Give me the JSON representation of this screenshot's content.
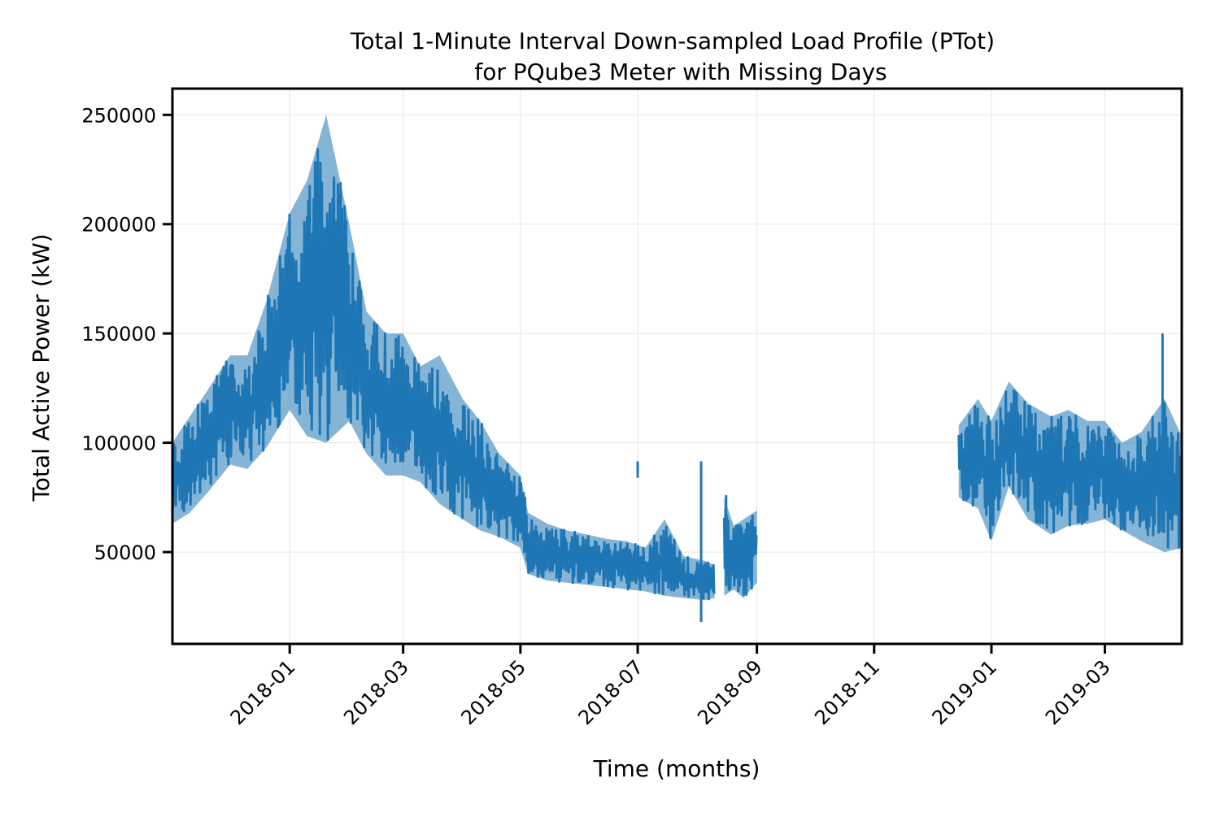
{
  "chart_data": {
    "type": "line",
    "title": [
      "Total 1-Minute Interval Down-sampled Load Profile (PTot)",
      "for PQube3 Meter with Missing Days"
    ],
    "xlabel": "Time (months)",
    "ylabel": "Total Active Power (kW)",
    "xlim": [
      "2017-11-01",
      "2019-04-10"
    ],
    "ylim": [
      8000,
      262000
    ],
    "x_ticks": [
      "2018-01",
      "2018-03",
      "2018-05",
      "2018-07",
      "2018-09",
      "2018-11",
      "2019-01",
      "2019-03"
    ],
    "y_ticks": [
      50000,
      100000,
      150000,
      200000,
      250000
    ],
    "grid": true,
    "legend": "none",
    "color": "#1f77b4",
    "series": [
      {
        "segment": 1,
        "x": [
          "2017-11-01",
          "2017-11-10",
          "2017-11-20",
          "2017-12-01",
          "2017-12-10",
          "2017-12-20",
          "2018-01-01",
          "2018-01-10",
          "2018-01-20",
          "2018-02-01",
          "2018-02-10",
          "2018-02-20",
          "2018-03-01",
          "2018-03-10",
          "2018-03-20",
          "2018-04-01",
          "2018-04-10",
          "2018-04-20",
          "2018-05-01",
          "2018-05-05",
          "2018-05-15",
          "2018-05-25",
          "2018-06-05",
          "2018-06-15",
          "2018-06-25",
          "2018-07-05",
          "2018-07-15",
          "2018-07-25",
          "2018-08-05",
          "2018-08-10"
        ],
        "low": [
          63000,
          68000,
          78000,
          90000,
          88000,
          98000,
          115000,
          103000,
          100000,
          110000,
          95000,
          85000,
          85000,
          82000,
          72000,
          65000,
          60000,
          57000,
          52000,
          40000,
          37000,
          36000,
          35000,
          34000,
          33000,
          32000,
          30000,
          29000,
          28000,
          29000
        ],
        "high": [
          100000,
          112000,
          125000,
          140000,
          140000,
          165000,
          205000,
          220000,
          250000,
          200000,
          160000,
          150000,
          150000,
          135000,
          140000,
          120000,
          110000,
          95000,
          85000,
          68000,
          63000,
          60000,
          58000,
          56000,
          55000,
          52000,
          65000,
          48000,
          46000,
          44000
        ]
      },
      {
        "segment": 2,
        "x": [
          "2018-08-15",
          "2018-08-20",
          "2018-08-25",
          "2018-09-01"
        ],
        "low": [
          30000,
          33000,
          29000,
          36000
        ],
        "high": [
          75000,
          62000,
          65000,
          69000
        ],
        "spikes": [
          {
            "x": "2018-08-16",
            "y": 76000
          }
        ]
      },
      {
        "segment": 3,
        "x": [
          "2018-12-15",
          "2018-12-25",
          "2019-01-01",
          "2019-01-10",
          "2019-01-20",
          "2019-02-01",
          "2019-02-10",
          "2019-02-20",
          "2019-03-01",
          "2019-03-10",
          "2019-03-20",
          "2019-04-01",
          "2019-04-10"
        ],
        "low": [
          75000,
          70000,
          55000,
          80000,
          65000,
          58000,
          62000,
          63000,
          65000,
          60000,
          55000,
          50000,
          52000
        ],
        "high": [
          108000,
          120000,
          110000,
          128000,
          118000,
          112000,
          115000,
          110000,
          110000,
          100000,
          105000,
          120000,
          103000
        ],
        "spikes": [
          {
            "x": "2018-07-01",
            "y": 84000
          },
          {
            "x": "2018-08-03",
            "y": 18000
          },
          {
            "x": "2019-03-31",
            "y": 150000
          }
        ]
      }
    ]
  }
}
